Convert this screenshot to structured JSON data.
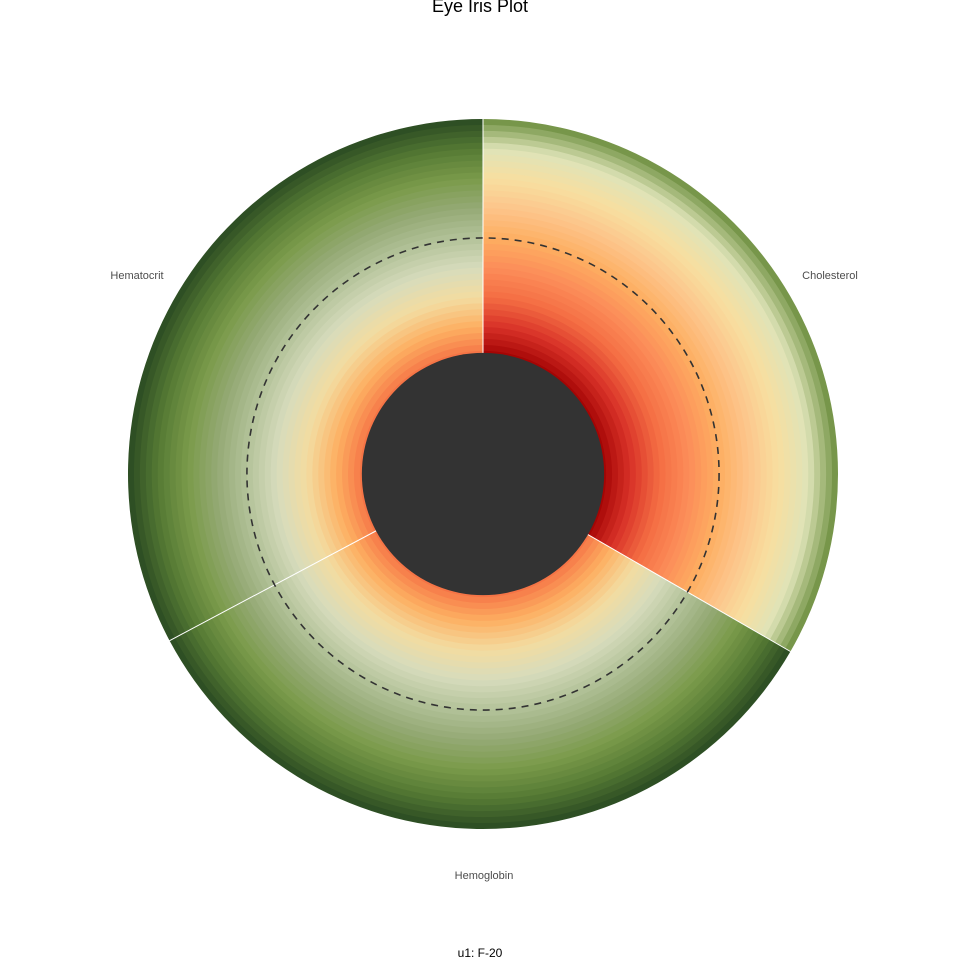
{
  "chart_data": {
    "type": "eye-iris-polar",
    "title": "Eye Iris Plot",
    "caption": "u1: F-20",
    "sectors": [
      {
        "name": "Cholesterol",
        "start_deg": 0,
        "end_deg": 120,
        "inner_value": 0.12,
        "palette": "red"
      },
      {
        "name": "Hemoglobin",
        "start_deg": 120,
        "end_deg": 242,
        "inner_value": 0.05,
        "palette": "green"
      },
      {
        "name": "Hematocrit",
        "start_deg": 242,
        "end_deg": 360,
        "inner_value": 0.04,
        "palette": "green"
      }
    ],
    "reference_value": 0.5,
    "reference_line": "dashed",
    "pupil_fraction": 0.33,
    "colors": {
      "pupil": "#333333",
      "reference_line": "#333333",
      "red_palette": [
        "#9e0000",
        "#d73027",
        "#f46d43",
        "#fc8d59",
        "#fdae61",
        "#fdc48a",
        "#f7dfa0",
        "#dfe3b8",
        "#6b8e3e"
      ],
      "green_palette": [
        "#f46d43",
        "#fdae61",
        "#f3dca0",
        "#d7dcbc",
        "#b3c29a",
        "#95aa75",
        "#7a9a4a",
        "#557a34",
        "#2a4a22"
      ]
    }
  }
}
